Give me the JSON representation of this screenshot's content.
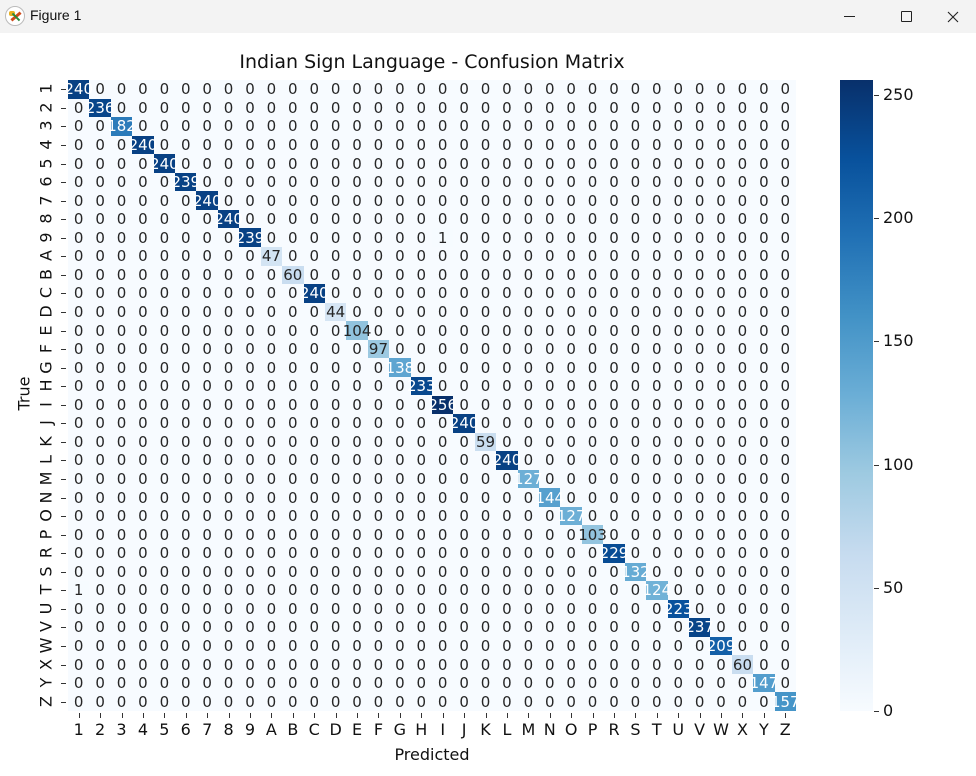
{
  "window": {
    "title": "Figure 1",
    "controls": {
      "minimize": "minimize",
      "maximize": "maximize",
      "close": "close"
    }
  },
  "chart_data": {
    "type": "heatmap",
    "title": "Indian Sign Language - Confusion Matrix",
    "xlabel": "Predicted",
    "ylabel": "True",
    "labels": [
      "1",
      "2",
      "3",
      "4",
      "5",
      "6",
      "7",
      "8",
      "9",
      "A",
      "B",
      "C",
      "D",
      "E",
      "F",
      "G",
      "H",
      "I",
      "J",
      "K",
      "L",
      "M",
      "N",
      "O",
      "P",
      "R",
      "S",
      "T",
      "U",
      "V",
      "W",
      "X",
      "Y",
      "Z"
    ],
    "diagonal": [
      240,
      236,
      182,
      240,
      240,
      239,
      240,
      240,
      239,
      47,
      60,
      240,
      44,
      104,
      97,
      138,
      233,
      256,
      240,
      59,
      240,
      127,
      144,
      127,
      103,
      229,
      132,
      124,
      223,
      237,
      209,
      60,
      147,
      157
    ],
    "off_diagonal": [
      {
        "true": "9",
        "predicted": "I",
        "value": 1
      },
      {
        "true": "T",
        "predicted": "1",
        "value": 1
      }
    ],
    "colormap": "Blues",
    "colorbar": {
      "ticks": [
        0,
        50,
        100,
        150,
        200,
        250
      ],
      "vmin": 0,
      "vmax": 256
    },
    "annotations": "all cells annotated with integer counts; unlisted cells are 0"
  }
}
